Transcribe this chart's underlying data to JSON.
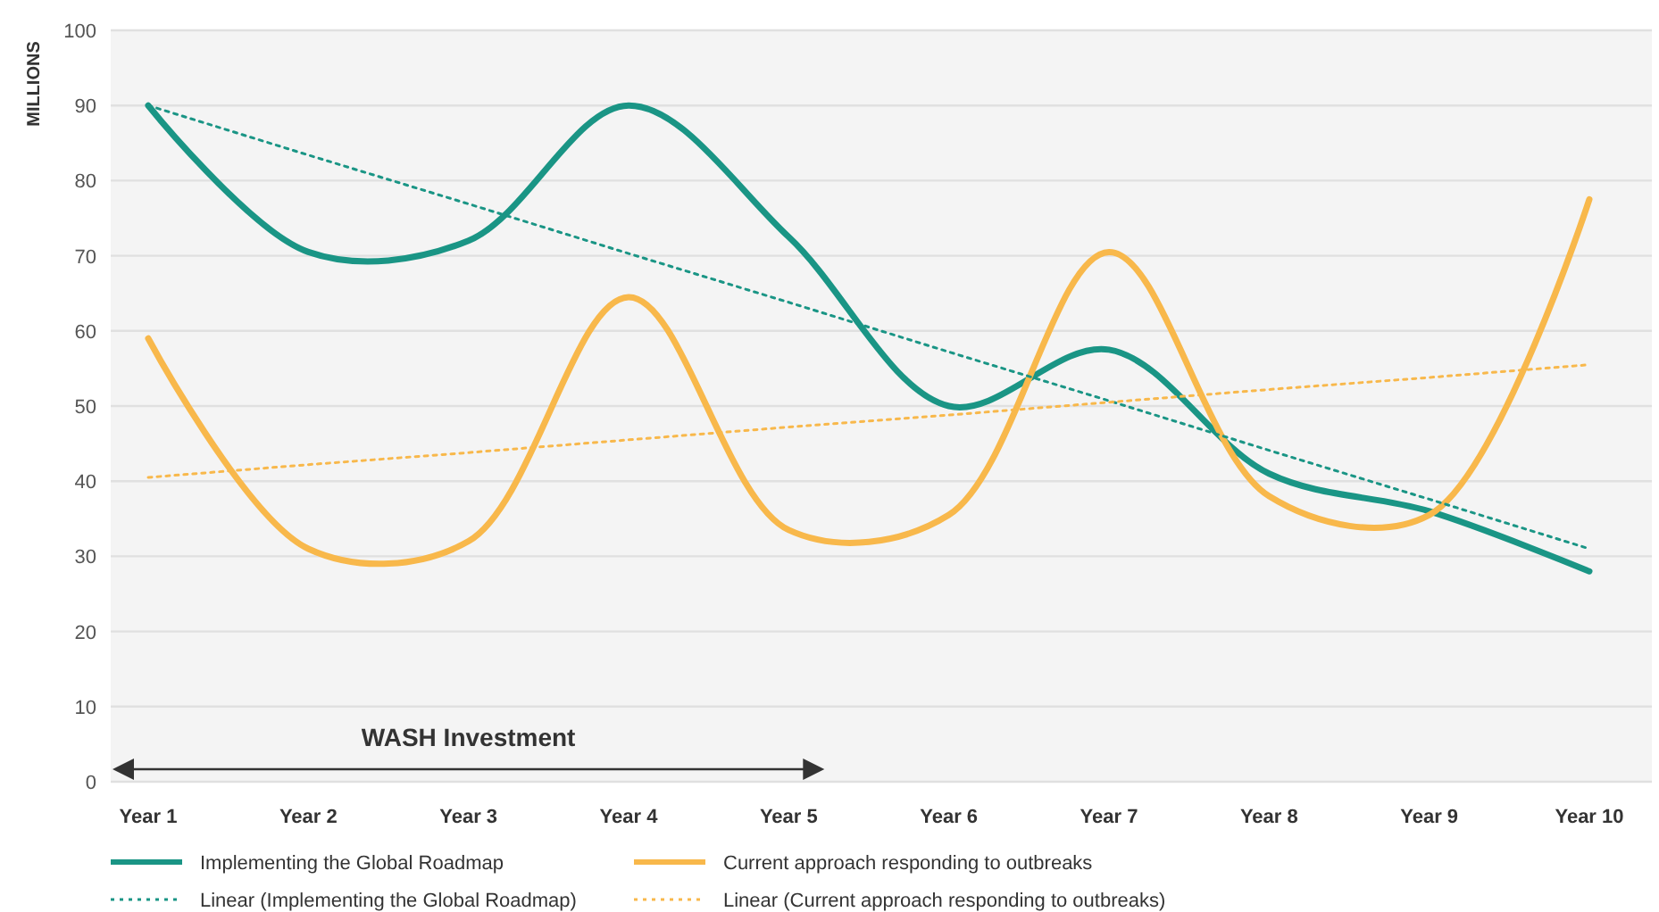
{
  "chart_data": {
    "type": "line",
    "ylabel": "MILLIONS",
    "categories": [
      "Year 1",
      "Year 2",
      "Year 3",
      "Year 4",
      "Year 5",
      "Year 6",
      "Year 7",
      "Year 8",
      "Year 9",
      "Year 10"
    ],
    "series": [
      {
        "name": "Implementing the Global Roadmap",
        "color": "#1a9585",
        "values": [
          90,
          70.5,
          72,
          90,
          72.5,
          50,
          57.5,
          41,
          36,
          28
        ]
      },
      {
        "name": "Current approach responding to outbreaks",
        "color": "#f8b84b",
        "values": [
          59,
          31,
          32,
          64.5,
          33.5,
          35.5,
          70.5,
          38,
          35.5,
          77.5
        ]
      },
      {
        "name": "Linear (Implementing the Global Roadmap)",
        "color": "#1a9585",
        "line_style": "dotted",
        "values": [
          90,
          83.4,
          76.9,
          70.3,
          63.8,
          57.2,
          50.7,
          44.1,
          37.6,
          31
        ]
      },
      {
        "name": "Linear (Current approach responding to outbreaks)",
        "color": "#f8b84b",
        "line_style": "dotted",
        "values": [
          40.5,
          42.2,
          43.8,
          45.5,
          47.2,
          48.8,
          50.5,
          52.2,
          53.8,
          55.5
        ]
      }
    ],
    "ylim": [
      0,
      100
    ],
    "yticks": [
      0,
      10,
      20,
      30,
      40,
      50,
      60,
      70,
      80,
      90,
      100
    ],
    "grid": "y",
    "legend": "bottom",
    "annotations": [
      "WASH Investment"
    ]
  }
}
